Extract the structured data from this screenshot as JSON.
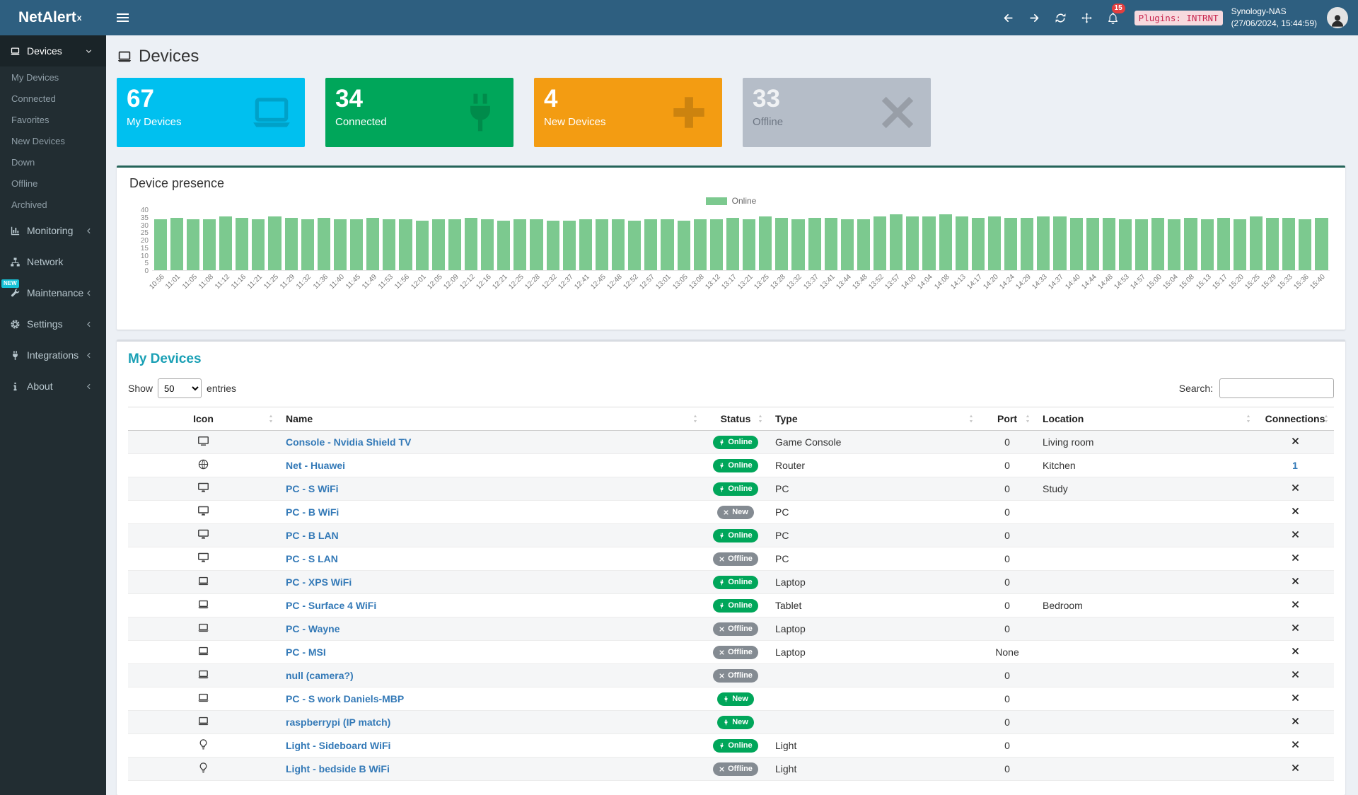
{
  "topbar": {
    "logo_text": "NetAlert",
    "logo_sup": "x",
    "notification_count": "15",
    "plugins_badge": "Plugins: INTRNT",
    "host": "Synology-NAS",
    "host_time": "(27/06/2024, 15:44:59)"
  },
  "sidebar": {
    "sections": [
      {
        "id": "devices",
        "label": "Devices",
        "icon": "laptop",
        "active": true,
        "chevron": "down",
        "children": [
          "My Devices",
          "Connected",
          "Favorites",
          "New Devices",
          "Down",
          "Offline",
          "Archived"
        ]
      },
      {
        "id": "monitoring",
        "label": "Monitoring",
        "icon": "chart",
        "chevron": "left"
      },
      {
        "id": "network",
        "label": "Network",
        "icon": "network"
      },
      {
        "id": "maintenance",
        "label": "Maintenance",
        "icon": "wrench",
        "chevron": "left",
        "badge": "NEW"
      },
      {
        "id": "settings",
        "label": "Settings",
        "icon": "gear",
        "chevron": "left"
      },
      {
        "id": "integrations",
        "label": "Integrations",
        "icon": "plug",
        "chevron": "left"
      },
      {
        "id": "about",
        "label": "About",
        "icon": "info",
        "chevron": "left"
      }
    ]
  },
  "page": {
    "title": "Devices"
  },
  "summary_boxes": [
    {
      "value": "67",
      "label": "My Devices",
      "color": "#00c0ef",
      "icon": "laptop",
      "muted": false
    },
    {
      "value": "34",
      "label": "Connected",
      "color": "#00a65a",
      "icon": "plug",
      "muted": false
    },
    {
      "value": "4",
      "label": "New Devices",
      "color": "#f39c12",
      "icon": "plus",
      "muted": false
    },
    {
      "value": "33",
      "label": "Offline",
      "color": "#b5bdc8",
      "icon": "x",
      "muted": true
    }
  ],
  "presence_panel": {
    "title": "Device presence",
    "legend": "Online",
    "bar_color": "#7cc98f",
    "chart_data": {
      "type": "bar",
      "x": [
        "10:56",
        "11:01",
        "11:05",
        "11:08",
        "11:12",
        "11:16",
        "11:21",
        "11:25",
        "11:29",
        "11:32",
        "11:36",
        "11:40",
        "11:45",
        "11:49",
        "11:53",
        "11:56",
        "12:01",
        "12:05",
        "12:09",
        "12:12",
        "12:16",
        "12:21",
        "12:25",
        "12:28",
        "12:32",
        "12:37",
        "12:41",
        "12:45",
        "12:48",
        "12:52",
        "12:57",
        "13:01",
        "13:05",
        "13:08",
        "13:12",
        "13:17",
        "13:21",
        "13:25",
        "13:28",
        "13:32",
        "13:37",
        "13:41",
        "13:44",
        "13:48",
        "13:52",
        "13:57",
        "14:00",
        "14:04",
        "14:08",
        "14:13",
        "14:17",
        "14:20",
        "14:24",
        "14:29",
        "14:33",
        "14:37",
        "14:40",
        "14:44",
        "14:48",
        "14:53",
        "14:57",
        "15:00",
        "15:04",
        "15:08",
        "15:13",
        "15:17",
        "15:20",
        "15:25",
        "15:29",
        "15:33",
        "15:36",
        "15:40"
      ],
      "series": [
        {
          "name": "Online",
          "values": [
            34,
            35,
            34,
            34,
            36,
            35,
            34,
            36,
            35,
            34,
            35,
            34,
            34,
            35,
            34,
            34,
            33,
            34,
            34,
            35,
            34,
            33,
            34,
            34,
            33,
            33,
            34,
            34,
            34,
            33,
            34,
            34,
            33,
            34,
            34,
            35,
            34,
            36,
            35,
            34,
            35,
            35,
            34,
            34,
            36,
            37,
            36,
            36,
            37,
            36,
            35,
            36,
            35,
            35,
            36,
            36,
            35,
            35,
            35,
            34,
            34,
            35,
            34,
            35,
            34,
            35,
            34,
            36,
            35,
            35,
            34,
            35
          ]
        }
      ],
      "ylim": [
        0,
        40
      ],
      "yticks": [
        0,
        5,
        10,
        15,
        20,
        25,
        30,
        35,
        40
      ]
    }
  },
  "devices_panel": {
    "title": "My Devices",
    "show_label": "Show",
    "page_length": "50",
    "entries_label": "entries",
    "search_label": "Search:",
    "columns": [
      "Icon",
      "Name",
      "Status",
      "Type",
      "Port",
      "Location",
      "Connections"
    ],
    "rows": [
      {
        "icon": "tv",
        "name": "Console - Nvidia Shield TV",
        "status": {
          "label": "Online",
          "variant": "green",
          "icon": "plug"
        },
        "type": "Game Console",
        "port": "0",
        "location": "Living room",
        "connections": "x"
      },
      {
        "icon": "globe",
        "name": "Net - Huawei",
        "status": {
          "label": "Online",
          "variant": "green",
          "icon": "plug"
        },
        "type": "Router",
        "port": "0",
        "location": "Kitchen",
        "connections": "1"
      },
      {
        "icon": "desktop",
        "name": "PC - S WiFi",
        "status": {
          "label": "Online",
          "variant": "green",
          "icon": "plug"
        },
        "type": "PC",
        "port": "0",
        "location": "Study",
        "connections": "x"
      },
      {
        "icon": "desktop",
        "name": "PC - B WiFi",
        "status": {
          "label": "New",
          "variant": "gray",
          "icon": "x"
        },
        "type": "PC",
        "port": "0",
        "location": "",
        "connections": "x"
      },
      {
        "icon": "desktop",
        "name": "PC - B LAN",
        "status": {
          "label": "Online",
          "variant": "green",
          "icon": "plug"
        },
        "type": "PC",
        "port": "0",
        "location": "",
        "connections": "x"
      },
      {
        "icon": "desktop",
        "name": "PC - S LAN",
        "status": {
          "label": "Offline",
          "variant": "gray",
          "icon": "x"
        },
        "type": "PC",
        "port": "0",
        "location": "",
        "connections": "x"
      },
      {
        "icon": "laptop",
        "name": "PC - XPS WiFi",
        "status": {
          "label": "Online",
          "variant": "green",
          "icon": "plug"
        },
        "type": "Laptop",
        "port": "0",
        "location": "",
        "connections": "x"
      },
      {
        "icon": "laptop",
        "name": "PC - Surface 4 WiFi",
        "status": {
          "label": "Online",
          "variant": "green",
          "icon": "plug"
        },
        "type": "Tablet",
        "port": "0",
        "location": "Bedroom",
        "connections": "x"
      },
      {
        "icon": "laptop",
        "name": "PC - Wayne",
        "status": {
          "label": "Offline",
          "variant": "gray",
          "icon": "x"
        },
        "type": "Laptop",
        "port": "0",
        "location": "",
        "connections": "x"
      },
      {
        "icon": "laptop",
        "name": "PC - MSI",
        "status": {
          "label": "Offline",
          "variant": "gray",
          "icon": "x"
        },
        "type": "Laptop",
        "port": "None",
        "location": "",
        "connections": "x"
      },
      {
        "icon": "laptop",
        "name": "null (camera?)",
        "status": {
          "label": "Offline",
          "variant": "gray",
          "icon": "x"
        },
        "type": "",
        "port": "0",
        "location": "",
        "connections": "x"
      },
      {
        "icon": "laptop",
        "name": "PC - S work Daniels-MBP",
        "status": {
          "label": "New",
          "variant": "green",
          "icon": "plug"
        },
        "type": "",
        "port": "0",
        "location": "",
        "connections": "x"
      },
      {
        "icon": "laptop",
        "name": "raspberrypi (IP match)",
        "status": {
          "label": "New",
          "variant": "green",
          "icon": "plug"
        },
        "type": "",
        "port": "0",
        "location": "",
        "connections": "x"
      },
      {
        "icon": "lightbulb",
        "name": "Light - Sideboard WiFi",
        "status": {
          "label": "Online",
          "variant": "green",
          "icon": "plug"
        },
        "type": "Light",
        "port": "0",
        "location": "",
        "connections": "x"
      },
      {
        "icon": "lightbulb",
        "name": "Light - bedside B WiFi",
        "status": {
          "label": "Offline",
          "variant": "gray",
          "icon": "x"
        },
        "type": "Light",
        "port": "0",
        "location": "",
        "connections": "x"
      }
    ]
  },
  "colors": {
    "online_badge": "#00a65a",
    "gray_badge": "#848b92",
    "accent": "#1aa0b5",
    "link": "#3379b7",
    "notification": "#e53e3e",
    "panel_accent": "#256459"
  }
}
